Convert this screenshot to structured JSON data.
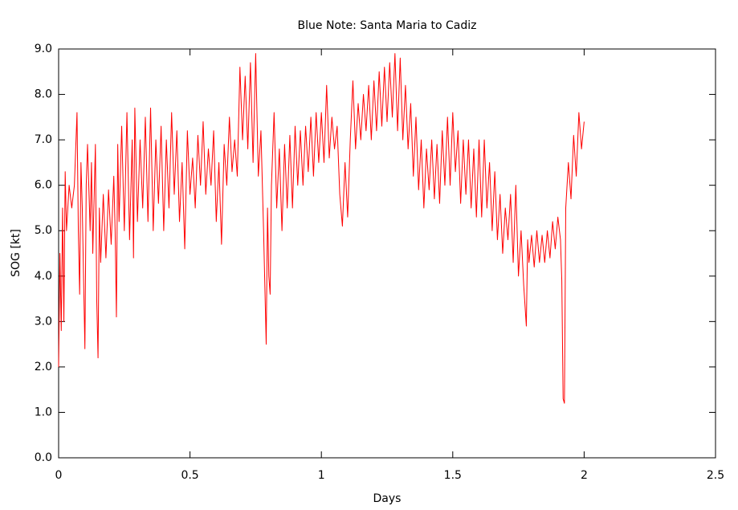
{
  "chart_data": {
    "type": "line",
    "title": "Blue Note: Santa Maria to Cadiz",
    "xlabel": "Days",
    "ylabel": "SOG [kt]",
    "color": "#ff0000",
    "grid": false,
    "xlim": [
      0,
      2.5
    ],
    "xticks": [
      0,
      0.5,
      1,
      1.5,
      2,
      2.5
    ],
    "ylim": [
      0,
      9
    ],
    "yticks": [
      {
        "value": 0,
        "label": "0.0"
      },
      {
        "value": 1,
        "label": "1.0"
      },
      {
        "value": 2,
        "label": "2.0"
      },
      {
        "value": 3,
        "label": "3.0"
      },
      {
        "value": 4,
        "label": "4.0"
      },
      {
        "value": 5,
        "label": "5.0"
      },
      {
        "value": 6,
        "label": "6.0"
      },
      {
        "value": 7,
        "label": "7.0"
      },
      {
        "value": 8,
        "label": "8.0"
      },
      {
        "value": 9,
        "label": "9.0"
      }
    ],
    "x": [
      0,
      0.005,
      0.01,
      0.015,
      0.02,
      0.025,
      0.03,
      0.04,
      0.05,
      0.06,
      0.07,
      0.075,
      0.08,
      0.085,
      0.09,
      0.1,
      0.105,
      0.11,
      0.12,
      0.125,
      0.13,
      0.14,
      0.145,
      0.15,
      0.155,
      0.16,
      0.17,
      0.18,
      0.19,
      0.2,
      0.21,
      0.215,
      0.22,
      0.225,
      0.23,
      0.24,
      0.25,
      0.26,
      0.27,
      0.28,
      0.285,
      0.29,
      0.3,
      0.31,
      0.32,
      0.33,
      0.34,
      0.35,
      0.36,
      0.37,
      0.38,
      0.39,
      0.4,
      0.41,
      0.42,
      0.43,
      0.44,
      0.45,
      0.46,
      0.47,
      0.48,
      0.49,
      0.5,
      0.51,
      0.52,
      0.53,
      0.54,
      0.55,
      0.56,
      0.57,
      0.58,
      0.59,
      0.6,
      0.61,
      0.62,
      0.63,
      0.64,
      0.65,
      0.66,
      0.67,
      0.68,
      0.69,
      0.7,
      0.71,
      0.72,
      0.73,
      0.74,
      0.75,
      0.76,
      0.77,
      0.78,
      0.79,
      0.795,
      0.8,
      0.805,
      0.81,
      0.82,
      0.83,
      0.84,
      0.85,
      0.86,
      0.87,
      0.88,
      0.89,
      0.9,
      0.91,
      0.92,
      0.93,
      0.94,
      0.95,
      0.96,
      0.97,
      0.98,
      0.99,
      1.0,
      1.01,
      1.02,
      1.03,
      1.04,
      1.05,
      1.06,
      1.07,
      1.08,
      1.09,
      1.1,
      1.11,
      1.12,
      1.13,
      1.14,
      1.15,
      1.16,
      1.17,
      1.18,
      1.19,
      1.2,
      1.21,
      1.22,
      1.23,
      1.24,
      1.25,
      1.26,
      1.27,
      1.28,
      1.29,
      1.3,
      1.31,
      1.32,
      1.33,
      1.34,
      1.35,
      1.36,
      1.37,
      1.38,
      1.39,
      1.4,
      1.41,
      1.42,
      1.43,
      1.44,
      1.45,
      1.46,
      1.47,
      1.48,
      1.49,
      1.5,
      1.51,
      1.52,
      1.53,
      1.54,
      1.55,
      1.56,
      1.57,
      1.58,
      1.59,
      1.6,
      1.61,
      1.62,
      1.63,
      1.64,
      1.65,
      1.66,
      1.67,
      1.68,
      1.69,
      1.7,
      1.71,
      1.72,
      1.73,
      1.74,
      1.75,
      1.76,
      1.77,
      1.78,
      1.785,
      1.79,
      1.8,
      1.81,
      1.82,
      1.83,
      1.84,
      1.85,
      1.86,
      1.87,
      1.88,
      1.89,
      1.9,
      1.91,
      1.915,
      1.92,
      1.925,
      1.93,
      1.94,
      1.95,
      1.96,
      1.97,
      1.98,
      1.99,
      2.0
    ],
    "values": [
      2.0,
      4.5,
      2.8,
      5.5,
      3.0,
      6.3,
      5.0,
      6.0,
      5.5,
      6.0,
      7.6,
      5.0,
      3.6,
      6.5,
      5.5,
      2.4,
      6.0,
      6.9,
      5.0,
      6.5,
      4.5,
      6.9,
      3.5,
      2.2,
      5.5,
      4.3,
      5.8,
      4.4,
      5.9,
      4.7,
      6.2,
      5.0,
      3.1,
      6.9,
      5.2,
      7.3,
      5.0,
      7.6,
      4.8,
      7.0,
      4.4,
      7.7,
      5.2,
      7.0,
      5.5,
      7.5,
      5.2,
      7.7,
      5.0,
      7.0,
      5.6,
      7.3,
      5.0,
      7.0,
      5.5,
      7.6,
      5.8,
      7.2,
      5.2,
      6.5,
      4.6,
      7.2,
      5.8,
      6.6,
      5.5,
      7.1,
      6.0,
      7.4,
      5.8,
      6.8,
      6.0,
      7.2,
      5.2,
      6.5,
      4.7,
      6.9,
      6.0,
      7.5,
      6.3,
      7.0,
      6.2,
      8.6,
      7.0,
      8.4,
      6.8,
      8.7,
      6.5,
      8.9,
      6.2,
      7.2,
      5.0,
      2.5,
      5.5,
      4.0,
      3.6,
      6.0,
      7.6,
      5.5,
      6.8,
      5.0,
      6.9,
      5.5,
      7.1,
      5.5,
      7.3,
      6.0,
      7.2,
      6.0,
      7.3,
      6.3,
      7.5,
      6.2,
      7.6,
      6.5,
      7.6,
      6.5,
      8.2,
      6.6,
      7.5,
      6.8,
      7.3,
      5.8,
      5.1,
      6.5,
      5.3,
      7.0,
      8.3,
      6.8,
      7.8,
      7.0,
      8.0,
      7.2,
      8.2,
      7.0,
      8.3,
      7.2,
      8.5,
      7.3,
      8.6,
      7.4,
      8.7,
      7.5,
      8.9,
      7.2,
      8.8,
      7.0,
      8.2,
      6.8,
      7.8,
      6.2,
      7.5,
      5.9,
      7.0,
      5.5,
      6.8,
      5.9,
      7.0,
      5.7,
      6.9,
      5.6,
      7.2,
      6.0,
      7.5,
      6.0,
      7.6,
      6.3,
      7.2,
      5.6,
      7.0,
      5.8,
      7.0,
      5.5,
      6.8,
      5.3,
      7.0,
      5.3,
      7.0,
      5.5,
      6.5,
      5.0,
      6.3,
      4.8,
      5.8,
      4.5,
      5.5,
      4.8,
      5.8,
      4.3,
      6.0,
      4.0,
      5.0,
      3.8,
      2.9,
      4.8,
      4.3,
      4.9,
      4.2,
      5.0,
      4.3,
      4.9,
      4.3,
      5.0,
      4.4,
      5.2,
      4.6,
      5.3,
      4.8,
      3.9,
      1.3,
      1.2,
      5.5,
      6.5,
      5.7,
      7.1,
      6.2,
      7.6,
      6.8,
      7.4
    ]
  }
}
